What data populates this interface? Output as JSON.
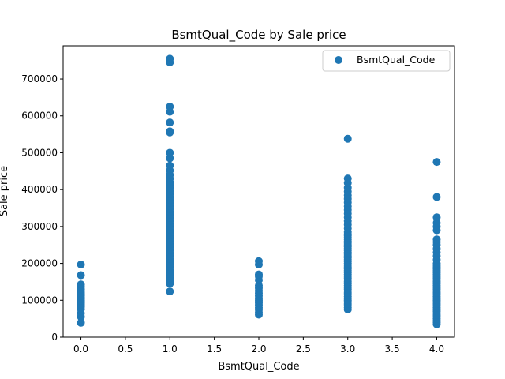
{
  "chart_data": {
    "type": "scatter",
    "title": "BsmtQual_Code by Sale price",
    "xlabel": "BsmtQual_Code",
    "ylabel": "Sale price",
    "xlim": [
      -0.2,
      4.2
    ],
    "ylim": [
      0,
      790000
    ],
    "xticks": [
      0.0,
      0.5,
      1.0,
      1.5,
      2.0,
      2.5,
      3.0,
      3.5,
      4.0
    ],
    "xtick_labels": [
      "0.0",
      "0.5",
      "1.0",
      "1.5",
      "2.0",
      "2.5",
      "3.0",
      "3.5",
      "4.0"
    ],
    "yticks": [
      0,
      100000,
      200000,
      300000,
      400000,
      500000,
      600000,
      700000
    ],
    "ytick_labels": [
      "0",
      "100000",
      "200000",
      "300000",
      "400000",
      "500000",
      "600000",
      "700000"
    ],
    "legend_position": "top-right",
    "grid": false,
    "series": [
      {
        "name": "BsmtQual_Code",
        "color": "#1f77b4",
        "points": [
          {
            "x": 0,
            "values": [
              39000,
              55000,
              65000,
              76000,
              82000,
              85000,
              88000,
              91000,
              94000,
              97000,
              100000,
              104000,
              108000,
              112000,
              116000,
              120000,
              125000,
              130000,
              137000,
              143000,
              168000,
              197000
            ]
          },
          {
            "x": 1,
            "values": [
              124000,
              145000,
              152000,
              160000,
              168000,
              175000,
              182000,
              190000,
              198000,
              205000,
              212000,
              220000,
              228000,
              236000,
              244000,
              252000,
              260000,
              268000,
              276000,
              284000,
              292000,
              300000,
              308000,
              316000,
              324000,
              332000,
              340000,
              348000,
              356000,
              364000,
              372000,
              380000,
              388000,
              396000,
              404000,
              412000,
              420000,
              430000,
              440000,
              452000,
              465000,
              485000,
              500000,
              555000,
              558000,
              582000,
              611000,
              625000,
              745000,
              755000
            ]
          },
          {
            "x": 2,
            "values": [
              61000,
              67000,
              74000,
              80000,
              87000,
              93000,
              99000,
              105000,
              112000,
              119000,
              126000,
              133000,
              140000,
              155000,
              165000,
              170000,
              197000,
              206000
            ]
          },
          {
            "x": 3,
            "values": [
              75000,
              80000,
              85000,
              90000,
              95000,
              100000,
              105000,
              110000,
              115000,
              120000,
              125000,
              130000,
              135000,
              140000,
              145000,
              150000,
              155000,
              160000,
              165000,
              170000,
              175000,
              180000,
              185000,
              190000,
              195000,
              200000,
              205000,
              210000,
              215000,
              220000,
              225000,
              230000,
              235000,
              240000,
              245000,
              250000,
              255000,
              260000,
              265000,
              270000,
              275000,
              280000,
              285000,
              295000,
              305000,
              315000,
              325000,
              335000,
              345000,
              355000,
              365000,
              375000,
              385000,
              395000,
              405000,
              418000,
              430000,
              538000
            ]
          },
          {
            "x": 4,
            "values": [
              34900,
              40000,
              45000,
              50000,
              55000,
              60000,
              65000,
              70000,
              75000,
              80000,
              85000,
              90000,
              95000,
              100000,
              105000,
              110000,
              115000,
              120000,
              125000,
              130000,
              135000,
              140000,
              145000,
              150000,
              155000,
              160000,
              165000,
              170000,
              175000,
              180000,
              185000,
              190000,
              195000,
              200000,
              210000,
              220000,
              230000,
              240000,
              250000,
              258000,
              265000,
              290000,
              300000,
              310000,
              325000,
              380000,
              475000
            ]
          }
        ]
      }
    ]
  }
}
